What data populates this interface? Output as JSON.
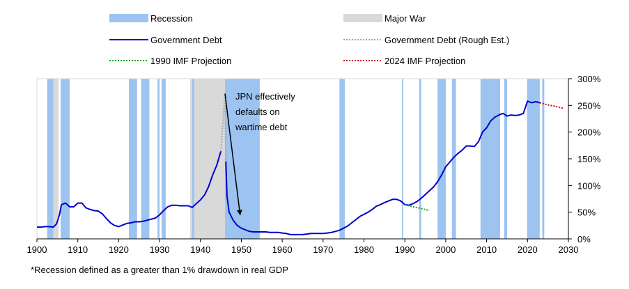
{
  "chart_data": {
    "type": "line",
    "xlim": [
      1900,
      2030
    ],
    "ylim": [
      0,
      300
    ],
    "x_ticks": [
      "1900",
      "1910",
      "1920",
      "1930",
      "1940",
      "1950",
      "1960",
      "1970",
      "1980",
      "1990",
      "2000",
      "2010",
      "2020",
      "2030"
    ],
    "y_ticks": [
      "0%",
      "50%",
      "100%",
      "150%",
      "200%",
      "250%",
      "300%"
    ],
    "legend": {
      "recession": "Recession",
      "war": "Major War",
      "debt": "Government Debt",
      "rough": "Government Debt (Rough Est.)",
      "imf1990": "1990 IMF Projection",
      "imf2024": "2024 IMF Projection"
    },
    "annotation": {
      "lines": [
        "JPN effectively",
        "defaults on",
        "wartime debt"
      ],
      "arrow_from": [
        1946,
        272
      ],
      "arrow_to": [
        1949.7,
        45
      ]
    },
    "footnote": "*Recession defined as a greater than 1% drawdown in real GDP",
    "colors": {
      "recession": "#9dc3f0",
      "war": "#d9d9d9",
      "debt": "#0000cc",
      "rough": "#a6a6a6",
      "imf1990": "#00aa00",
      "imf2024": "#cc0000"
    },
    "recessions": [
      [
        1902.5,
        1904
      ],
      [
        1905.8,
        1908
      ],
      [
        1922.5,
        1924.5
      ],
      [
        1925.5,
        1927.5
      ],
      [
        1929.5,
        1930
      ],
      [
        1930.5,
        1931.5
      ],
      [
        1938,
        1938.5
      ],
      [
        1946,
        1954.5
      ],
      [
        1974,
        1975.3
      ],
      [
        1989.3,
        1989.6
      ],
      [
        1993.5,
        1994
      ],
      [
        1998,
        2000
      ],
      [
        2001.5,
        2002.5
      ],
      [
        2008.5,
        2013.3
      ],
      [
        2014.3,
        2015
      ],
      [
        2019.9,
        2023
      ],
      [
        2023.6,
        2024.1
      ]
    ],
    "wars": [
      [
        1904,
        1905.3
      ],
      [
        1937.5,
        1946.1
      ]
    ],
    "series": [
      {
        "name": "Government Debt",
        "points": [
          [
            1900,
            22
          ],
          [
            1901,
            22
          ],
          [
            1902,
            23
          ],
          [
            1903,
            23
          ],
          [
            1904,
            22
          ],
          [
            1904.8,
            28
          ],
          [
            1905.5,
            45
          ],
          [
            1906,
            64
          ],
          [
            1907,
            67
          ],
          [
            1908,
            60
          ],
          [
            1909,
            60
          ],
          [
            1910,
            67
          ],
          [
            1911,
            67
          ],
          [
            1912,
            58
          ],
          [
            1913,
            55
          ],
          [
            1914,
            53
          ],
          [
            1915,
            52
          ],
          [
            1916,
            47
          ],
          [
            1917,
            38
          ],
          [
            1918,
            30
          ],
          [
            1919,
            25
          ],
          [
            1920,
            23
          ],
          [
            1921,
            26
          ],
          [
            1922,
            29
          ],
          [
            1923,
            30
          ],
          [
            1924,
            32
          ],
          [
            1925,
            32
          ],
          [
            1926,
            33
          ],
          [
            1927,
            35
          ],
          [
            1928,
            37
          ],
          [
            1929,
            39
          ],
          [
            1930,
            45
          ],
          [
            1931,
            53
          ],
          [
            1932,
            60
          ],
          [
            1933,
            63
          ],
          [
            1934,
            63
          ],
          [
            1935,
            62
          ],
          [
            1936,
            62
          ],
          [
            1937,
            62
          ],
          [
            1938,
            59
          ],
          [
            1939,
            66
          ],
          [
            1940,
            73
          ],
          [
            1941,
            82
          ],
          [
            1942,
            98
          ],
          [
            1943,
            120
          ],
          [
            1944,
            138
          ],
          [
            1945,
            164
          ]
        ]
      },
      {
        "name": "Government Debt",
        "points": [
          [
            1946.2,
            145
          ],
          [
            1946.5,
            80
          ],
          [
            1947,
            50
          ],
          [
            1948,
            35
          ],
          [
            1949,
            25
          ],
          [
            1950,
            20
          ],
          [
            1951,
            17
          ],
          [
            1952,
            14
          ],
          [
            1953,
            13
          ],
          [
            1954,
            13
          ],
          [
            1955,
            13
          ],
          [
            1956,
            13
          ],
          [
            1957,
            12
          ],
          [
            1958,
            12
          ],
          [
            1959,
            12
          ],
          [
            1960,
            11
          ],
          [
            1961,
            10
          ],
          [
            1962,
            8
          ],
          [
            1963,
            8
          ],
          [
            1964,
            8
          ],
          [
            1965,
            8
          ],
          [
            1966,
            9
          ],
          [
            1967,
            10
          ],
          [
            1968,
            10
          ],
          [
            1969,
            10
          ],
          [
            1970,
            10
          ],
          [
            1971,
            11
          ],
          [
            1972,
            12
          ],
          [
            1973,
            14
          ],
          [
            1974,
            16
          ],
          [
            1975,
            20
          ],
          [
            1976,
            24
          ],
          [
            1977,
            30
          ],
          [
            1978,
            36
          ],
          [
            1979,
            42
          ],
          [
            1980,
            46
          ],
          [
            1981,
            50
          ],
          [
            1982,
            55
          ],
          [
            1983,
            61
          ],
          [
            1984,
            64
          ],
          [
            1985,
            68
          ],
          [
            1986,
            71
          ],
          [
            1987,
            74
          ],
          [
            1988,
            74
          ],
          [
            1989,
            71
          ],
          [
            1990,
            64
          ],
          [
            1991,
            63
          ],
          [
            1992,
            66
          ],
          [
            1993,
            70
          ],
          [
            1994,
            76
          ],
          [
            1995,
            83
          ],
          [
            1996,
            90
          ],
          [
            1997,
            97
          ],
          [
            1998,
            107
          ],
          [
            1999,
            120
          ],
          [
            2000,
            135
          ],
          [
            2001,
            144
          ],
          [
            2002,
            153
          ],
          [
            2003,
            160
          ],
          [
            2004,
            166
          ],
          [
            2005,
            174
          ],
          [
            2006,
            174
          ],
          [
            2007,
            173
          ],
          [
            2008,
            182
          ],
          [
            2009,
            200
          ],
          [
            2010,
            208
          ],
          [
            2011,
            221
          ],
          [
            2012,
            228
          ],
          [
            2013,
            232
          ],
          [
            2014,
            235
          ],
          [
            2015,
            230
          ],
          [
            2016,
            232
          ],
          [
            2017,
            231
          ],
          [
            2018,
            232
          ],
          [
            2019,
            235
          ],
          [
            2020,
            258
          ],
          [
            2021,
            255
          ],
          [
            2022,
            257
          ],
          [
            2023,
            255
          ]
        ]
      },
      {
        "name": "Government Debt (Rough Est.)",
        "points": [
          [
            1945,
            164
          ],
          [
            1946,
            272
          ],
          [
            1946.2,
            145
          ]
        ]
      },
      {
        "name": "1990 IMF Projection",
        "points": [
          [
            1990,
            64
          ],
          [
            1992,
            60
          ],
          [
            1994,
            57
          ],
          [
            1996,
            53
          ]
        ]
      },
      {
        "name": "2024 IMF Projection",
        "points": [
          [
            2023,
            255
          ],
          [
            2025,
            251
          ],
          [
            2027,
            248
          ],
          [
            2029,
            244
          ]
        ]
      }
    ]
  }
}
